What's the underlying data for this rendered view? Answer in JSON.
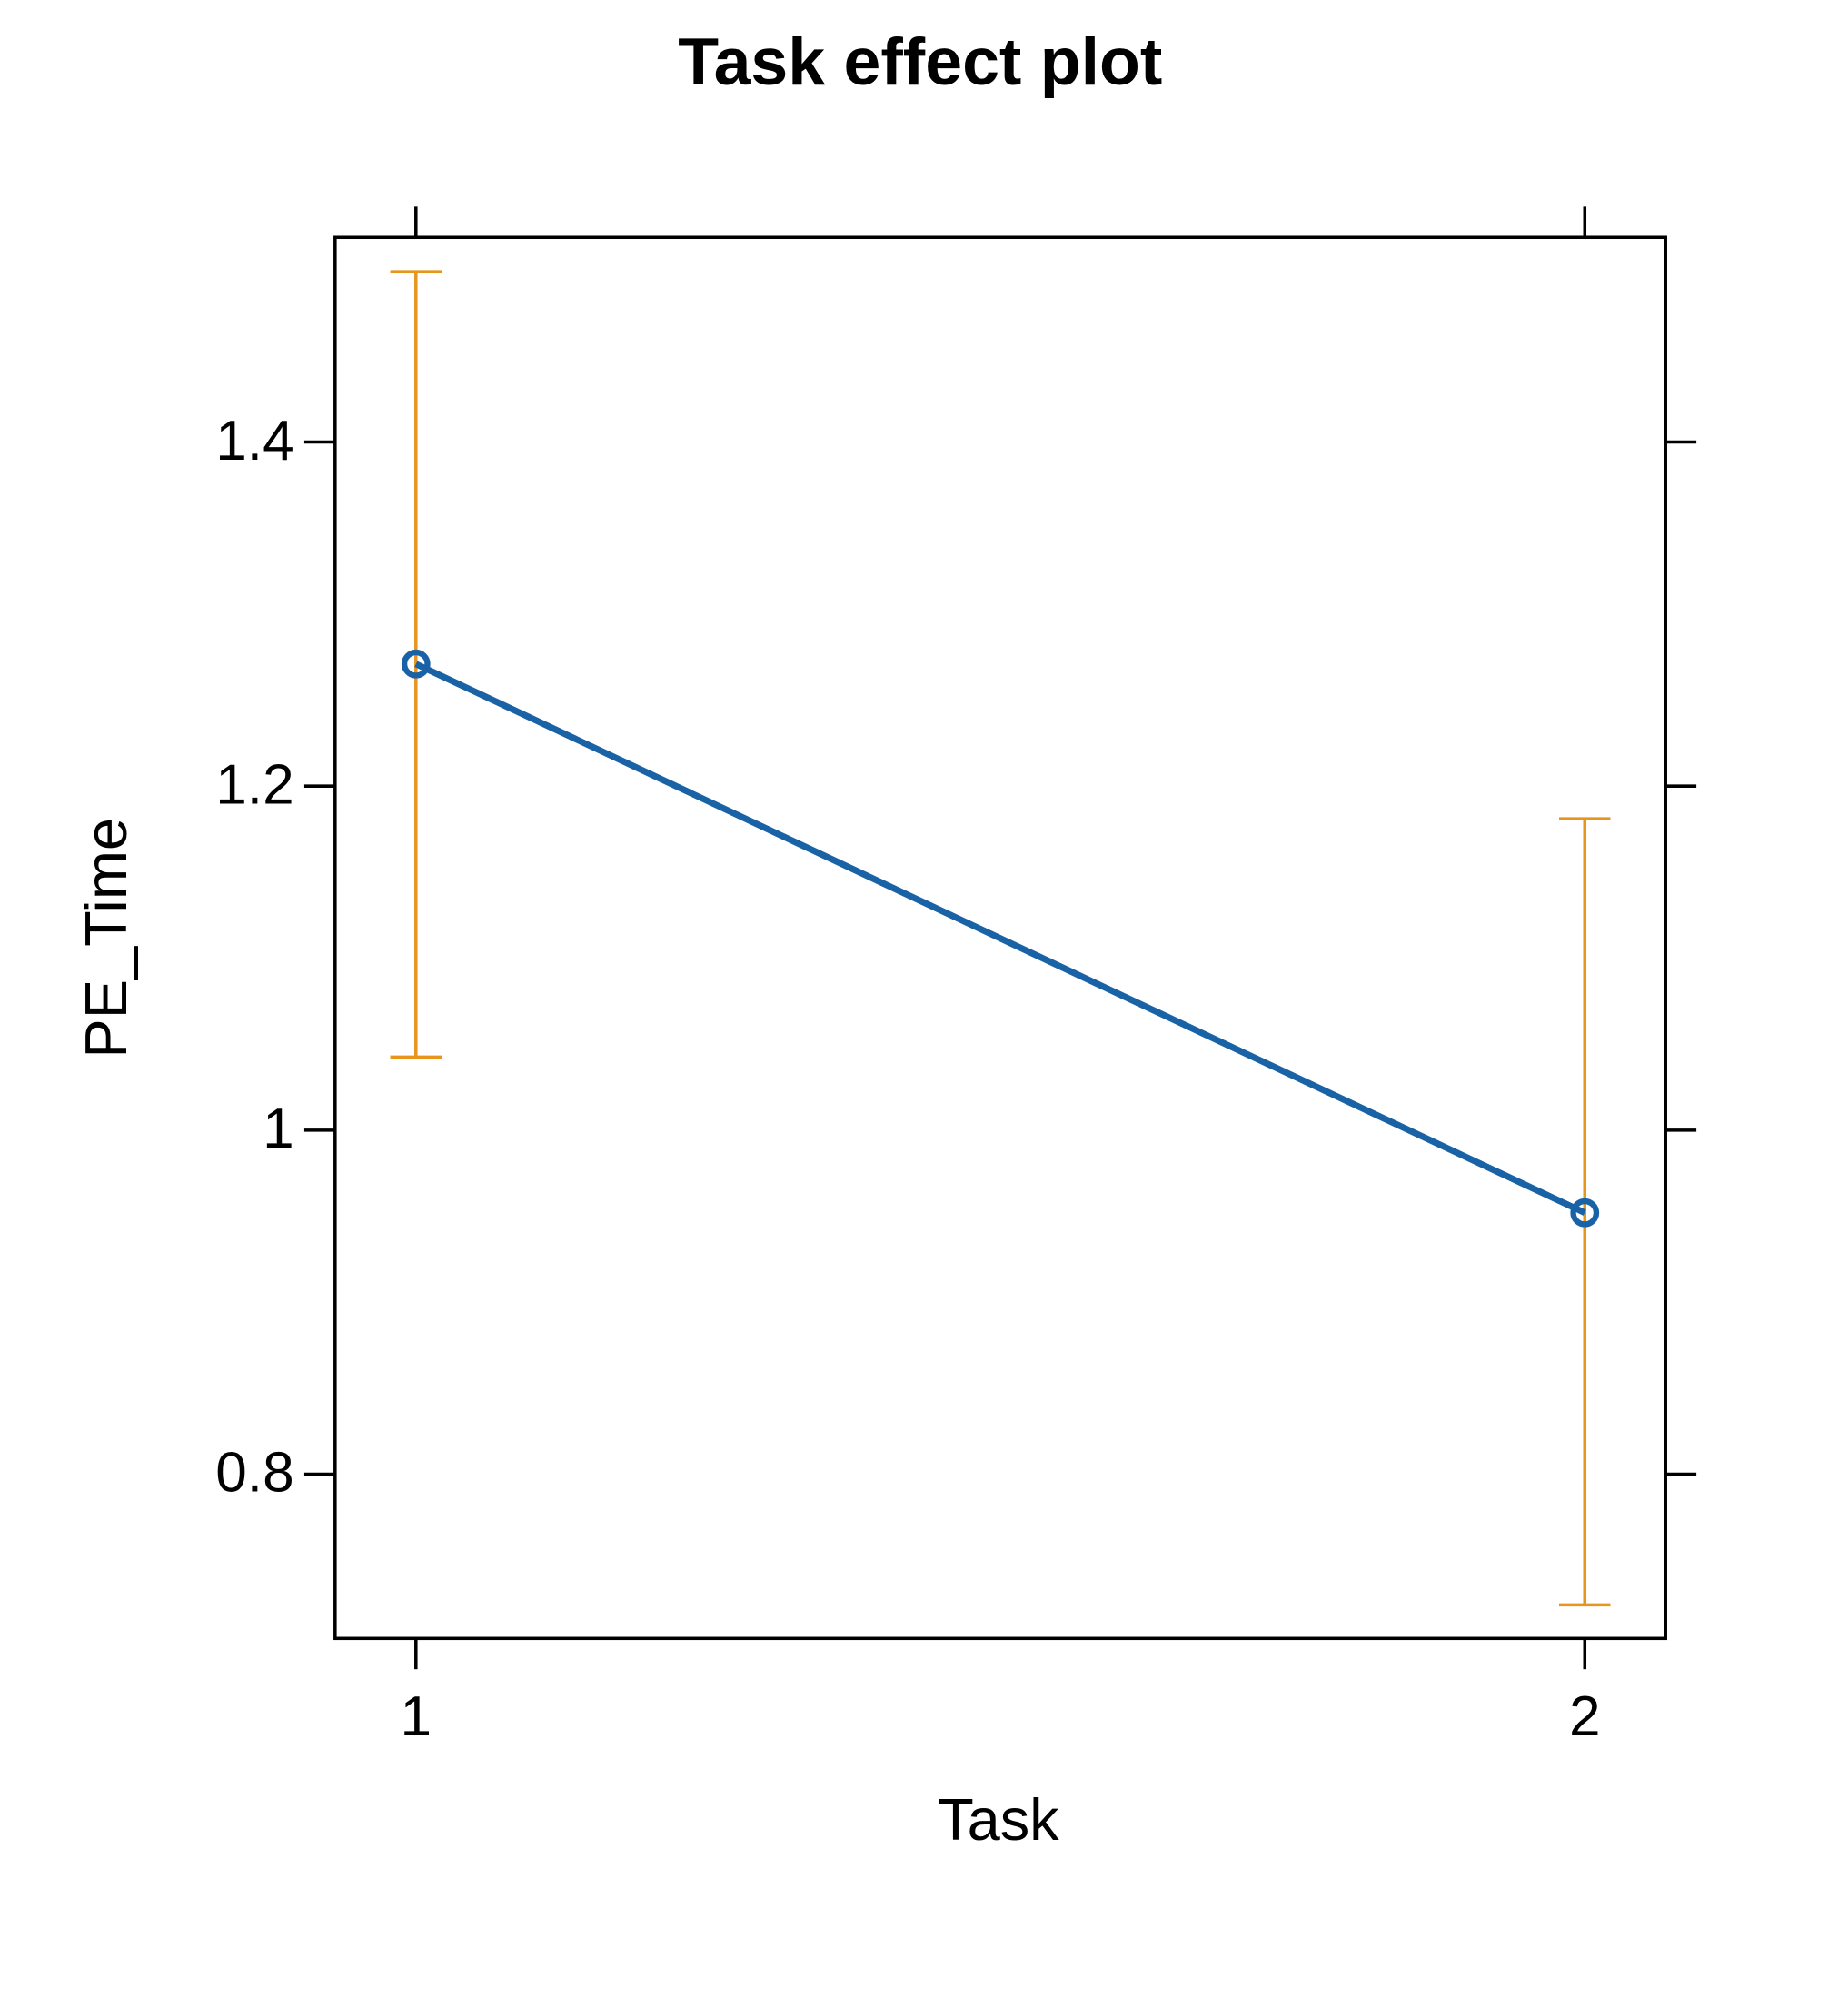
{
  "chart_data": {
    "type": "line",
    "title": "Task effect plot",
    "x_label": "Task",
    "y_label": "PE_Time",
    "categories": [
      "1",
      "2"
    ],
    "series": [
      {
        "name": "PE_Time",
        "color": "#1a62a6",
        "error_color": "#e8951e",
        "values": [
          1.271,
          0.952
        ],
        "lower": [
          1.0425,
          0.724
        ],
        "upper": [
          1.499,
          1.181
        ]
      }
    ],
    "ylim": [
      0.7045,
      1.519
    ],
    "yticks": [
      0.8,
      1.0,
      1.2,
      1.4
    ]
  }
}
